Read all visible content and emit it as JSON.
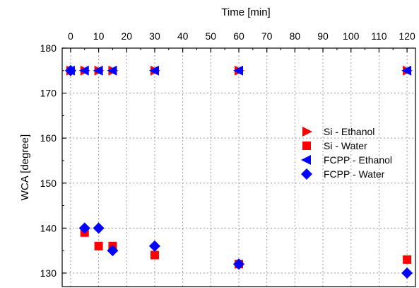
{
  "chart_data": {
    "type": "scatter",
    "xlabel": "Time [min]",
    "ylabel": "WCA [degree]",
    "xlim": [
      -3,
      123
    ],
    "ylim": [
      127,
      180
    ],
    "x_ticks": [
      0,
      10,
      20,
      30,
      40,
      50,
      60,
      70,
      80,
      90,
      100,
      110,
      120
    ],
    "y_ticks": [
      130,
      140,
      150,
      160,
      170,
      180
    ],
    "x_axis_position": "top",
    "grid": true,
    "legend_position": "right",
    "series": [
      {
        "name": "Si - Ethanol",
        "marker": "triangle-right",
        "color": "#ff0000",
        "x": [
          0,
          5,
          10,
          15,
          30,
          60,
          120
        ],
        "y": [
          175,
          175,
          175,
          175,
          175,
          175,
          175
        ]
      },
      {
        "name": "Si - Water",
        "marker": "square",
        "color": "#ff0000",
        "x": [
          5,
          10,
          15,
          30,
          60,
          120
        ],
        "y": [
          139,
          136,
          136,
          134,
          132,
          133
        ]
      },
      {
        "name": "FCPP - Ethanol",
        "marker": "triangle-left",
        "color": "#0000ff",
        "x": [
          0,
          5,
          10,
          15,
          30,
          60,
          120
        ],
        "y": [
          175,
          175,
          175,
          175,
          175,
          175,
          175
        ]
      },
      {
        "name": "FCPP - Water",
        "marker": "diamond",
        "color": "#0000ff",
        "x": [
          0,
          5,
          10,
          15,
          30,
          60,
          120
        ],
        "y": [
          175,
          140,
          140,
          135,
          136,
          132,
          130
        ]
      }
    ]
  }
}
